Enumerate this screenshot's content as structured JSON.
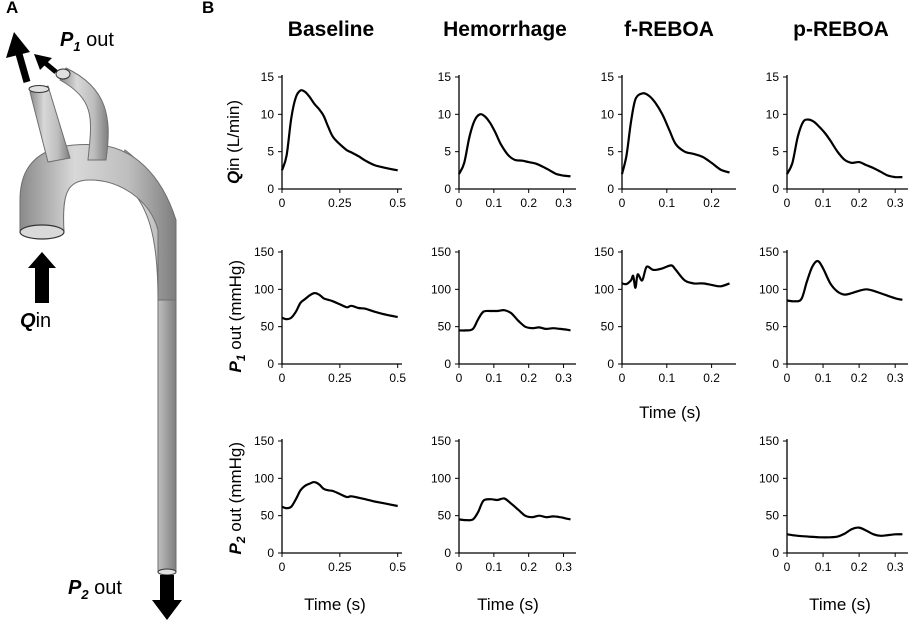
{
  "panel_labels": {
    "a": "A",
    "b": "B"
  },
  "anatomy": {
    "p1_symbol": "P",
    "p1_sub": "1",
    "p1_suffix": " out",
    "q_symbol": "Q",
    "q_suffix": "in",
    "p2_symbol": "P",
    "p2_sub": "2",
    "p2_suffix": " out",
    "vessel_color": "#bdbdbd"
  },
  "columns": [
    "Baseline",
    "Hemorrhage",
    "f-REBOA",
    "p-REBOA"
  ],
  "row_labels": [
    {
      "symbol": "Q",
      "sub": "",
      "text": "in (L/min)"
    },
    {
      "symbol": "P",
      "sub": "1",
      "text": " out (mmHg)"
    },
    {
      "symbol": "P",
      "sub": "2",
      "text": " out (mmHg)"
    }
  ],
  "time_label": "Time (s)",
  "chart_data": [
    {
      "id": "q-baseline",
      "type": "line",
      "row": 0,
      "col": 0,
      "title": "Baseline",
      "ylabel": "Qin (L/min)",
      "xlabel": "",
      "xlim": [
        0,
        0.51
      ],
      "ylim": [
        0,
        15
      ],
      "xticks": [
        0,
        0.25,
        0.5
      ],
      "xtick_labels": [
        "0",
        "0.25",
        "0.5"
      ],
      "yticks": [
        0,
        5,
        10,
        15
      ],
      "ytick_labels": [
        "0",
        "5",
        "10",
        "15"
      ],
      "series": [
        {
          "name": "Qin",
          "x": [
            0,
            0.02,
            0.04,
            0.06,
            0.08,
            0.1,
            0.12,
            0.14,
            0.16,
            0.18,
            0.2,
            0.22,
            0.25,
            0.28,
            0.3,
            0.33,
            0.36,
            0.4,
            0.45,
            0.5
          ],
          "y": [
            2.5,
            4.5,
            9.5,
            12.3,
            13.2,
            13.0,
            12.3,
            11.4,
            10.7,
            9.8,
            8.3,
            7.0,
            6.0,
            5.2,
            4.9,
            4.4,
            3.8,
            3.2,
            2.8,
            2.5
          ]
        }
      ]
    },
    {
      "id": "q-hemorrhage",
      "type": "line",
      "row": 0,
      "col": 1,
      "title": "Hemorrhage",
      "ylabel": "",
      "xlabel": "",
      "xlim": [
        0,
        0.33
      ],
      "ylim": [
        0,
        15
      ],
      "xticks": [
        0,
        0.1,
        0.2,
        0.3
      ],
      "xtick_labels": [
        "0",
        "0.1",
        "0.2",
        "0.3"
      ],
      "yticks": [
        0,
        5,
        10,
        15
      ],
      "ytick_labels": [
        "0",
        "5",
        "10",
        "15"
      ],
      "series": [
        {
          "name": "Qin",
          "x": [
            0,
            0.015,
            0.03,
            0.045,
            0.06,
            0.075,
            0.09,
            0.105,
            0.12,
            0.14,
            0.16,
            0.18,
            0.2,
            0.22,
            0.24,
            0.26,
            0.28,
            0.3,
            0.32
          ],
          "y": [
            2.0,
            3.5,
            7.0,
            9.2,
            10.0,
            9.7,
            8.8,
            7.5,
            6.0,
            4.6,
            3.9,
            3.8,
            3.6,
            3.4,
            3.0,
            2.5,
            2.0,
            1.8,
            1.7
          ]
        }
      ]
    },
    {
      "id": "q-freboa",
      "type": "line",
      "row": 0,
      "col": 2,
      "title": "f-REBOA",
      "ylabel": "",
      "xlabel": "",
      "xlim": [
        0,
        0.25
      ],
      "ylim": [
        0,
        15
      ],
      "xticks": [
        0,
        0.1,
        0.2
      ],
      "xtick_labels": [
        "0",
        "0.1",
        "0.2"
      ],
      "yticks": [
        0,
        5,
        10,
        15
      ],
      "ytick_labels": [
        "0",
        "5",
        "10",
        "15"
      ],
      "series": [
        {
          "name": "Qin",
          "x": [
            0,
            0.01,
            0.02,
            0.03,
            0.045,
            0.06,
            0.075,
            0.09,
            0.105,
            0.12,
            0.14,
            0.16,
            0.18,
            0.2,
            0.22,
            0.24
          ],
          "y": [
            2.0,
            4.5,
            9.0,
            12.0,
            12.8,
            12.5,
            11.5,
            10.0,
            8.0,
            6.0,
            5.0,
            4.7,
            4.3,
            3.5,
            2.6,
            2.2
          ]
        }
      ]
    },
    {
      "id": "q-preboa",
      "type": "line",
      "row": 0,
      "col": 3,
      "title": "p-REBOA",
      "ylabel": "",
      "xlabel": "",
      "xlim": [
        0,
        0.33
      ],
      "ylim": [
        0,
        15
      ],
      "xticks": [
        0,
        0.1,
        0.2,
        0.3
      ],
      "xtick_labels": [
        "0",
        "0.1",
        "0.2",
        "0.3"
      ],
      "yticks": [
        0,
        5,
        10,
        15
      ],
      "ytick_labels": [
        "0",
        "5",
        "10",
        "15"
      ],
      "series": [
        {
          "name": "Qin",
          "x": [
            0,
            0.015,
            0.03,
            0.045,
            0.06,
            0.075,
            0.09,
            0.105,
            0.12,
            0.14,
            0.16,
            0.18,
            0.2,
            0.22,
            0.24,
            0.26,
            0.28,
            0.3,
            0.32
          ],
          "y": [
            2.0,
            3.5,
            7.0,
            9.0,
            9.3,
            9.0,
            8.3,
            7.5,
            6.5,
            5.0,
            3.9,
            3.5,
            3.6,
            3.2,
            2.8,
            2.3,
            1.8,
            1.6,
            1.6
          ]
        }
      ]
    },
    {
      "id": "p1-baseline",
      "type": "line",
      "row": 1,
      "col": 0,
      "title": "",
      "ylabel": "P1 out (mmHg)",
      "xlabel": "",
      "xlim": [
        0,
        0.51
      ],
      "ylim": [
        0,
        150
      ],
      "xticks": [
        0,
        0.25,
        0.5
      ],
      "xtick_labels": [
        "0",
        "0.25",
        "0.5"
      ],
      "yticks": [
        0,
        50,
        100,
        150
      ],
      "ytick_labels": [
        "0",
        "50",
        "100",
        "150"
      ],
      "series": [
        {
          "name": "P1",
          "x": [
            0,
            0.02,
            0.04,
            0.06,
            0.08,
            0.1,
            0.12,
            0.14,
            0.16,
            0.18,
            0.2,
            0.22,
            0.25,
            0.28,
            0.3,
            0.33,
            0.36,
            0.4,
            0.45,
            0.5
          ],
          "y": [
            62,
            60,
            62,
            70,
            82,
            87,
            92,
            95,
            93,
            88,
            86,
            84,
            80,
            76,
            78,
            75,
            74,
            70,
            66,
            63
          ]
        }
      ]
    },
    {
      "id": "p1-hemorrhage",
      "type": "line",
      "row": 1,
      "col": 1,
      "title": "",
      "ylabel": "",
      "xlabel": "",
      "xlim": [
        0,
        0.33
      ],
      "ylim": [
        0,
        150
      ],
      "xticks": [
        0,
        0.1,
        0.2,
        0.3
      ],
      "xtick_labels": [
        "0",
        "0.1",
        "0.2",
        "0.3"
      ],
      "yticks": [
        0,
        50,
        100,
        150
      ],
      "ytick_labels": [
        "0",
        "50",
        "100",
        "150"
      ],
      "series": [
        {
          "name": "P1",
          "x": [
            0,
            0.02,
            0.04,
            0.055,
            0.07,
            0.09,
            0.11,
            0.13,
            0.15,
            0.17,
            0.19,
            0.21,
            0.23,
            0.25,
            0.27,
            0.29,
            0.31,
            0.32
          ],
          "y": [
            45,
            45,
            47,
            60,
            70,
            71,
            71,
            72,
            68,
            58,
            50,
            48,
            49,
            47,
            48,
            47,
            46,
            45
          ]
        }
      ]
    },
    {
      "id": "p1-freboa",
      "type": "line",
      "row": 1,
      "col": 2,
      "title": "",
      "ylabel": "",
      "xlabel": "Time (s)",
      "xlim": [
        0,
        0.25
      ],
      "ylim": [
        0,
        150
      ],
      "xticks": [
        0,
        0.1,
        0.2
      ],
      "xtick_labels": [
        "0",
        "0.1",
        "0.2"
      ],
      "yticks": [
        0,
        50,
        100,
        150
      ],
      "ytick_labels": [
        "0",
        "50",
        "100",
        "150"
      ],
      "series": [
        {
          "name": "P1",
          "x": [
            0,
            0.01,
            0.02,
            0.025,
            0.03,
            0.035,
            0.045,
            0.055,
            0.07,
            0.09,
            0.11,
            0.12,
            0.14,
            0.16,
            0.18,
            0.2,
            0.22,
            0.24
          ],
          "y": [
            108,
            107,
            112,
            118,
            102,
            120,
            112,
            130,
            126,
            128,
            132,
            126,
            112,
            108,
            108,
            106,
            104,
            108
          ]
        }
      ]
    },
    {
      "id": "p1-preboa",
      "type": "line",
      "row": 1,
      "col": 3,
      "title": "",
      "ylabel": "",
      "xlabel": "",
      "xlim": [
        0,
        0.33
      ],
      "ylim": [
        0,
        150
      ],
      "xticks": [
        0,
        0.1,
        0.2,
        0.3
      ],
      "xtick_labels": [
        "0",
        "0.1",
        "0.2",
        "0.3"
      ],
      "yticks": [
        0,
        50,
        100,
        150
      ],
      "ytick_labels": [
        "0",
        "50",
        "100",
        "150"
      ],
      "series": [
        {
          "name": "P1",
          "x": [
            0,
            0.02,
            0.04,
            0.055,
            0.07,
            0.085,
            0.1,
            0.12,
            0.14,
            0.16,
            0.18,
            0.2,
            0.22,
            0.24,
            0.27,
            0.3,
            0.32
          ],
          "y": [
            85,
            84,
            87,
            110,
            130,
            138,
            128,
            108,
            97,
            93,
            95,
            98,
            100,
            98,
            93,
            88,
            86
          ]
        }
      ]
    },
    {
      "id": "p2-baseline",
      "type": "line",
      "row": 2,
      "col": 0,
      "title": "",
      "ylabel": "P2 out (mmHg)",
      "xlabel": "Time (s)",
      "xlim": [
        0,
        0.51
      ],
      "ylim": [
        0,
        150
      ],
      "xticks": [
        0,
        0.25,
        0.5
      ],
      "xtick_labels": [
        "0",
        "0.25",
        "0.5"
      ],
      "yticks": [
        0,
        50,
        100,
        150
      ],
      "ytick_labels": [
        "0",
        "50",
        "100",
        "150"
      ],
      "series": [
        {
          "name": "P2",
          "x": [
            0,
            0.02,
            0.04,
            0.06,
            0.08,
            0.1,
            0.12,
            0.14,
            0.16,
            0.18,
            0.2,
            0.22,
            0.25,
            0.28,
            0.3,
            0.33,
            0.36,
            0.4,
            0.45,
            0.5
          ],
          "y": [
            62,
            60,
            62,
            72,
            84,
            90,
            93,
            95,
            92,
            86,
            84,
            83,
            79,
            75,
            76,
            74,
            72,
            69,
            66,
            63
          ]
        }
      ]
    },
    {
      "id": "p2-hemorrhage",
      "type": "line",
      "row": 2,
      "col": 1,
      "title": "",
      "ylabel": "",
      "xlabel": "Time (s)",
      "xlim": [
        0,
        0.33
      ],
      "ylim": [
        0,
        150
      ],
      "xticks": [
        0,
        0.1,
        0.2,
        0.3
      ],
      "xtick_labels": [
        "0",
        "0.1",
        "0.2",
        "0.3"
      ],
      "yticks": [
        0,
        50,
        100,
        150
      ],
      "ytick_labels": [
        "0",
        "50",
        "100",
        "150"
      ],
      "series": [
        {
          "name": "P2",
          "x": [
            0,
            0.02,
            0.04,
            0.055,
            0.07,
            0.09,
            0.11,
            0.13,
            0.15,
            0.17,
            0.19,
            0.21,
            0.23,
            0.25,
            0.27,
            0.29,
            0.31,
            0.32
          ],
          "y": [
            45,
            44,
            45,
            55,
            70,
            72,
            71,
            73,
            66,
            58,
            50,
            48,
            50,
            48,
            49,
            48,
            46,
            45
          ]
        }
      ]
    },
    {
      "id": "p2-preboa",
      "type": "line",
      "row": 2,
      "col": 3,
      "title": "",
      "ylabel": "",
      "xlabel": "Time (s)",
      "xlim": [
        0,
        0.33
      ],
      "ylim": [
        0,
        150
      ],
      "xticks": [
        0,
        0.1,
        0.2,
        0.3
      ],
      "xtick_labels": [
        "0",
        "0.1",
        "0.2",
        "0.3"
      ],
      "yticks": [
        0,
        50,
        100,
        150
      ],
      "ytick_labels": [
        "0",
        "50",
        "100",
        "150"
      ],
      "series": [
        {
          "name": "P2",
          "x": [
            0,
            0.03,
            0.06,
            0.09,
            0.12,
            0.14,
            0.16,
            0.18,
            0.2,
            0.22,
            0.24,
            0.26,
            0.28,
            0.3,
            0.32
          ],
          "y": [
            25,
            23,
            22,
            21,
            21,
            22,
            26,
            32,
            34,
            30,
            25,
            23,
            24,
            25,
            25
          ]
        }
      ]
    }
  ]
}
